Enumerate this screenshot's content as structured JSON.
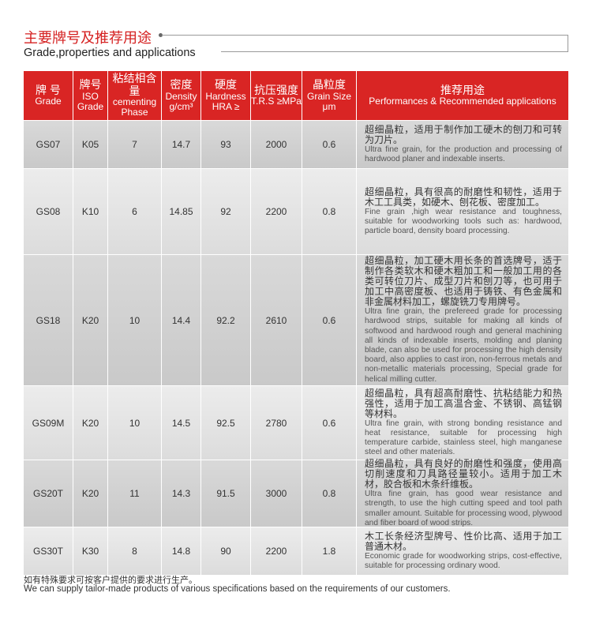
{
  "title_cn": "主要牌号及推荐用途",
  "title_en": "Grade,properties and applications",
  "headers": [
    {
      "cn": "牌 号",
      "en": "Grade"
    },
    {
      "cn": "牌号",
      "en": "ISO Grade"
    },
    {
      "cn": "粘结相含量",
      "en": "cementing Phase"
    },
    {
      "cn": "密度",
      "en": "Density g/cm³"
    },
    {
      "cn": "硬度",
      "en": "Hardness HRA ≥"
    },
    {
      "cn": "抗压强度",
      "en": "T.R.S ≥MPa"
    },
    {
      "cn": "晶粒度",
      "en": "Grain Size μm"
    },
    {
      "cn": "推荐用途",
      "en": "Performances & Recommended applications"
    }
  ],
  "rows": [
    {
      "grade": "GS07",
      "iso": "K05",
      "phase": "7",
      "density": "14.7",
      "hardness": "93",
      "trs": "2000",
      "grain": "0.6",
      "app_cn": "超细晶粒，适用于制作加工硬木的刨刀和可转为刀片。",
      "app_en": "Ultra fine grain, for the production and processing of hardwood planer and indexable inserts."
    },
    {
      "grade": "GS08",
      "iso": "K10",
      "phase": "6",
      "density": "14.85",
      "hardness": "92",
      "trs": "2200",
      "grain": "0.8",
      "app_cn": "超细晶粒，具有很高的耐磨性和韧性，适用于木工工具类，如硬木、刨花板、密度加工。",
      "app_en": "Fine grain ,high wear resistance and toughness, suitable for woodworking tools such as: hardwood, particle board, density board processing."
    },
    {
      "grade": "GS18",
      "iso": "K20",
      "phase": "10",
      "density": "14.4",
      "hardness": "92.2",
      "trs": "2610",
      "grain": "0.6",
      "app_cn": "超细晶粒，加工硬木用长条的首选牌号，适于制作各类软木和硬木粗加工和一般加工用的各类可转位刀片、成型刀片和刨刀等，也可用于加工中高密度板、也适用于铸铁、有色金属和非金属材料加工，螺旋铣刀专用牌号。",
      "app_en": "Ultra fine grain, the prefereed grade for processing hardwood strips, suitable for making all kinds of softwood and hardwood rough and general machining all kinds of indexable inserts, molding and planing blade, can also be used for processing the high density board, also applies to cast iron, non-ferrous metals and non-metallic materials processing, Special grade for helical milling cutter."
    },
    {
      "grade": "GS09M",
      "iso": "K20",
      "phase": "10",
      "density": "14.5",
      "hardness": "92.5",
      "trs": "2780",
      "grain": "0.6",
      "app_cn": "超细晶粒，具有超高耐磨性、抗粘结能力和热强性，适用于加工高温合金、不锈钢、高锰钢等材料。",
      "app_en": "Ultra fine grain, with strong bonding resistance and heat resistance, suitable for processing high temperature carbide, stainless steel, high manganese steel and other materials."
    },
    {
      "grade": "GS20T",
      "iso": "K20",
      "phase": "11",
      "density": "14.3",
      "hardness": "91.5",
      "trs": "3000",
      "grain": "0.8",
      "app_cn": "超细晶粒，具有良好的耐磨性和强度，使用高切削速度和刀具路径量较小。适用于加工木材，胶合板和木条纤维板。",
      "app_en": "Ultra fine grain, has good wear resistance and strength, to use the high cutting speed and tool path smaller amount. Suitable for processing wood, plywood and fiber board of wood strips."
    },
    {
      "grade": "GS30T",
      "iso": "K30",
      "phase": "8",
      "density": "14.8",
      "hardness": "90",
      "trs": "2200",
      "grain": "1.8",
      "app_cn": "木工长条经济型牌号、性价比高、适用于加工普通木材。",
      "app_en": "Economic grade for woodworking strips, cost-effective, suitable for processing ordinary wood."
    }
  ],
  "footer_cn": "如有特殊要求可按客户提供的要求进行生产。",
  "footer_en": "We can supply tailor-made products of various specifications based on the requirements of our customers.",
  "colors": {
    "header_bg": "#d92524",
    "title": "#d52121"
  }
}
